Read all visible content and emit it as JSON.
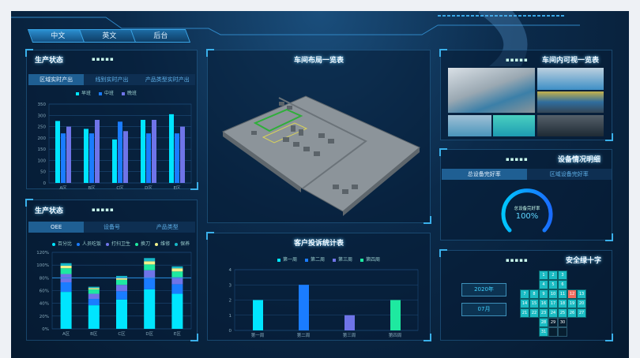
{
  "lang_tabs": [
    "中文",
    "英文",
    "后台"
  ],
  "colors": {
    "accent": "#3ab0ea",
    "cyan": "#00e5ff",
    "blue": "#1a7cff",
    "purple": "#6f74e8",
    "green": "#1ee9a0",
    "yellow": "#f3f08a",
    "teal": "#18b8c8",
    "red": "#f26b5e"
  },
  "prod1": {
    "title": "生产状态",
    "dots": "▪▪▪▪▪",
    "tabs": [
      "区域实时产出",
      "线别实时产出",
      "产品类型实时产出"
    ],
    "chart_data": {
      "type": "bar",
      "categories": [
        "A区",
        "B区",
        "C区",
        "D区",
        "E区"
      ],
      "ylim": [
        0,
        350
      ],
      "yticks": [
        0,
        50,
        100,
        150,
        200,
        250,
        300,
        350
      ],
      "series": [
        {
          "name": "早班",
          "color": "#00e5ff",
          "values": [
            275,
            240,
            193,
            280,
            305
          ]
        },
        {
          "name": "中班",
          "color": "#1a7cff",
          "values": [
            220,
            220,
            272,
            220,
            220
          ]
        },
        {
          "name": "晚班",
          "color": "#6f74e8",
          "values": [
            250,
            280,
            230,
            280,
            250
          ]
        }
      ]
    }
  },
  "prod2": {
    "title": "生产状态",
    "dots": "▪▪▪▪▪",
    "tabs": [
      "OEE",
      "设备号",
      "产品类型"
    ],
    "chart_data": {
      "type": "stacked-bar",
      "categories": [
        "A区",
        "B区",
        "C区",
        "D区",
        "E区"
      ],
      "ylim": [
        0,
        120
      ],
      "yticks": [
        "0%",
        "20%",
        "40%",
        "60%",
        "80%",
        "100%",
        "120%"
      ],
      "reference_line": 80,
      "series": [
        {
          "name": "百分比",
          "color": "#00e5ff",
          "values": [
            58,
            37,
            46,
            62,
            55
          ]
        },
        {
          "name": "人员吃饭",
          "color": "#1a7cff",
          "values": [
            15,
            10,
            13,
            17,
            15
          ]
        },
        {
          "name": "打扫卫生",
          "color": "#6f74e8",
          "values": [
            13,
            8,
            10,
            13,
            11
          ]
        },
        {
          "name": "换刀",
          "color": "#1ee9a0",
          "values": [
            9,
            7,
            8,
            9,
            9
          ]
        },
        {
          "name": "维修",
          "color": "#f3f08a",
          "values": [
            4,
            2,
            3,
            5,
            5
          ]
        },
        {
          "name": "保养",
          "color": "#18b8c8",
          "values": [
            4,
            2,
            3,
            5,
            3
          ]
        }
      ]
    }
  },
  "layout": {
    "title": "车间布局一览表"
  },
  "complaints": {
    "title": "客户投诉统计表",
    "chart_data": {
      "type": "bar",
      "categories": [
        "第一周",
        "第二周",
        "第三周",
        "第四周"
      ],
      "ylim": [
        0,
        4
      ],
      "yticks": [
        0,
        1,
        2,
        3,
        4
      ],
      "series": [
        {
          "name": "第一周",
          "color": "#00e5ff"
        },
        {
          "name": "第二周",
          "color": "#1a7cff"
        },
        {
          "name": "第三周",
          "color": "#6f74e8"
        },
        {
          "name": "第四周",
          "color": "#1ee9a0"
        }
      ],
      "values": [
        2,
        3,
        1,
        2
      ]
    }
  },
  "visual": {
    "title": "车间内可视一览表",
    "dots": "▪▪▪▪▪"
  },
  "equipment": {
    "title": "设备情况明细",
    "dots": "▪▪▪▪▪",
    "tabs": [
      "总设备完好率",
      "区域设备完好率"
    ],
    "gauge_label": "总设备完好率",
    "gauge_value": "100%",
    "gauge_fraction": 1.0
  },
  "safety": {
    "title": "安全绿十字",
    "dots": "▪▪▪▪▪",
    "year": "2020年",
    "month": "07月",
    "highlight_day": 12,
    "dark_days": [
      29,
      30
    ]
  }
}
